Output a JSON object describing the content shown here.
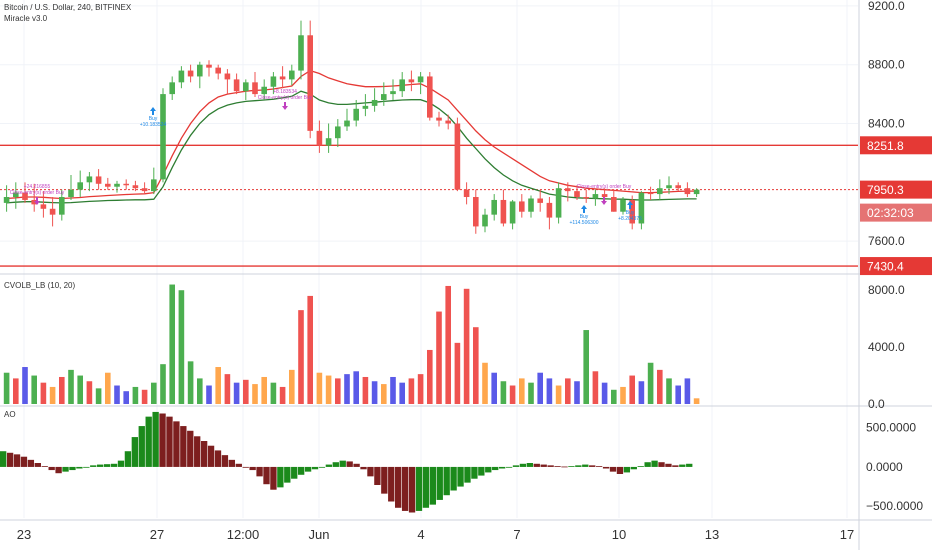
{
  "header": {
    "symbol_title": "Bitcoin / U.S. Dollar, 240, BITFINEX",
    "indicator_name": "Miracle v3.0",
    "volume_panel_label": "CVOLB_LB (10, 20)",
    "ao_panel_label": "AO"
  },
  "price_scale": {
    "ticks": [
      "9200.0",
      "8800.0",
      "8400.0",
      "7600.0"
    ],
    "last_price": "7950.3",
    "countdown": "02:32:03",
    "upper_line_label": "8251.8",
    "lower_line_label": "7430.4"
  },
  "volume_scale": {
    "ticks": [
      "8000.0",
      "4000.0",
      "0.0"
    ]
  },
  "ao_scale": {
    "ticks": [
      "500.0000",
      "0.0000",
      "−500.0000"
    ]
  },
  "time_axis": {
    "ticks": [
      "23",
      "27",
      "12:00",
      "Jun",
      "4",
      "7",
      "10",
      "13",
      "17"
    ]
  },
  "signals": [
    {
      "kind": "buy",
      "label": "Buy",
      "sub": "+10.183534"
    },
    {
      "kind": "close",
      "label": "+8.183534",
      "sub": "Close-entry(s) order Buy"
    },
    {
      "kind": "close",
      "label": "+24.216855",
      "sub": "Close-entry(s) order Buy"
    },
    {
      "kind": "buy",
      "label": "Buy",
      "sub": "+114.506300"
    },
    {
      "kind": "close",
      "label": "Close-entry(s) order Buy",
      "sub": ""
    },
    {
      "kind": "buy",
      "label": "Buy",
      "sub": "+8.204375"
    }
  ],
  "colors": {
    "up": "#4caf50",
    "down": "#ef5350",
    "upper_ma": "#e53935",
    "lower_ma": "#2e7d32",
    "level_line": "#e53935",
    "vol_green": "#4caf50",
    "vol_red": "#ef5350",
    "vol_orange": "#ffa74d",
    "vol_blue": "#5a5ae8",
    "ao_green": "#1b8a1b",
    "ao_red": "#7d1f1f",
    "signal_buy": "#1e88e5",
    "signal_close": "#c040c0"
  },
  "chart_data": [
    {
      "type": "candlestick",
      "title": "Bitcoin / U.S. Dollar, 240, BITFINEX",
      "ylim": [
        7390,
        9240
      ],
      "horizontal_levels": [
        8251.8,
        7430.4
      ],
      "last_price": 7950.3,
      "series": [
        {
          "name": "Candles",
          "open": [
            7860,
            7900,
            7930,
            7880,
            7850,
            7820,
            7780,
            7900,
            7950,
            8000,
            8040,
            7990,
            7970,
            7990,
            7980,
            7960,
            7940,
            8020,
            8600,
            8680,
            8760,
            8720,
            8800,
            8780,
            8740,
            8700,
            8620,
            8680,
            8600,
            8650,
            8720,
            8700,
            8760,
            9000,
            8350,
            8250,
            8300,
            8380,
            8420,
            8500,
            8520,
            8560,
            8600,
            8620,
            8700,
            8680,
            8720,
            8440,
            8420,
            8400,
            7950,
            7900,
            7700,
            7780,
            7880,
            7720,
            7870,
            7800,
            7890,
            7860,
            7760,
            7960,
            7940,
            7900,
            7890,
            7920,
            7900,
            7800,
            7880,
            7720,
            7930,
            7920,
            7960,
            7980,
            7960,
            7920
          ],
          "high": [
            7980,
            8000,
            8000,
            7990,
            7940,
            7900,
            7950,
            8050,
            8080,
            8070,
            8090,
            8030,
            8010,
            8020,
            8010,
            8000,
            8100,
            8640,
            8720,
            8790,
            8800,
            8820,
            8830,
            8800,
            8770,
            8740,
            8700,
            8750,
            8700,
            8750,
            8790,
            8800,
            9100,
            9100,
            8420,
            8400,
            8430,
            8500,
            8560,
            8600,
            8640,
            8680,
            8700,
            8750,
            8760,
            8750,
            8750,
            8480,
            8460,
            8440,
            8000,
            7950,
            7820,
            7920,
            7950,
            7880,
            7920,
            7910,
            7950,
            7900,
            8000,
            8000,
            7980,
            7950,
            7950,
            7960,
            7950,
            7900,
            7910,
            7940,
            7970,
            8020,
            8040,
            8000,
            8000,
            7960
          ],
          "low": [
            7800,
            7820,
            7860,
            7800,
            7760,
            7700,
            7740,
            7880,
            7900,
            7940,
            7950,
            7950,
            7930,
            7950,
            7940,
            7920,
            7920,
            8000,
            8560,
            8640,
            8680,
            8640,
            8720,
            8700,
            8600,
            8600,
            8560,
            8580,
            8560,
            8600,
            8640,
            8660,
            8700,
            8300,
            8200,
            8200,
            8240,
            8350,
            8380,
            8450,
            8480,
            8520,
            8560,
            8580,
            8620,
            8600,
            8420,
            8380,
            8360,
            7940,
            7850,
            7650,
            7660,
            7740,
            7700,
            7680,
            7760,
            7760,
            7800,
            7680,
            7720,
            7870,
            7880,
            7860,
            7840,
            7860,
            7800,
            7780,
            7680,
            7680,
            7880,
            7880,
            7920,
            7940,
            7900,
            7900
          ],
          "close": [
            7900,
            7930,
            7880,
            7850,
            7820,
            7780,
            7900,
            7950,
            8000,
            8040,
            7990,
            7970,
            7990,
            7980,
            7960,
            7940,
            8020,
            8600,
            8680,
            8760,
            8720,
            8800,
            8780,
            8740,
            8700,
            8620,
            8680,
            8600,
            8650,
            8720,
            8700,
            8760,
            9000,
            8350,
            8250,
            8300,
            8380,
            8420,
            8500,
            8520,
            8560,
            8600,
            8620,
            8700,
            8680,
            8720,
            8440,
            8420,
            8400,
            7950,
            7900,
            7700,
            7780,
            7880,
            7720,
            7870,
            7800,
            7890,
            7860,
            7760,
            7960,
            7940,
            7900,
            7890,
            7920,
            7900,
            7800,
            7880,
            7720,
            7930,
            7920,
            7960,
            7980,
            7960,
            7920,
            7950
          ]
        },
        {
          "name": "Upper MA",
          "values": [
            7890,
            7895,
            7900,
            7900,
            7898,
            7893,
            7890,
            7893,
            7897,
            7903,
            7906,
            7910,
            7914,
            7917,
            7920,
            7922,
            7930,
            8050,
            8180,
            8300,
            8400,
            8480,
            8540,
            8580,
            8600,
            8610,
            8620,
            8625,
            8628,
            8635,
            8645,
            8655,
            8720,
            8760,
            8740,
            8710,
            8690,
            8670,
            8660,
            8650,
            8650,
            8652,
            8655,
            8660,
            8665,
            8670,
            8640,
            8600,
            8560,
            8490,
            8420,
            8350,
            8290,
            8240,
            8200,
            8160,
            8120,
            8080,
            8040,
            8010,
            7995,
            7980,
            7970,
            7960,
            7955,
            7950,
            7945,
            7940,
            7935,
            7930,
            7930,
            7932,
            7935,
            7938,
            7940,
            7940
          ]
        },
        {
          "name": "Lower MA",
          "values": [
            7860,
            7865,
            7868,
            7868,
            7865,
            7862,
            7860,
            7862,
            7866,
            7870,
            7873,
            7876,
            7878,
            7880,
            7881,
            7881,
            7885,
            7970,
            8100,
            8220,
            8320,
            8400,
            8460,
            8500,
            8525,
            8540,
            8550,
            8555,
            8560,
            8565,
            8575,
            8585,
            8620,
            8600,
            8560,
            8540,
            8530,
            8530,
            8535,
            8540,
            8545,
            8550,
            8555,
            8560,
            8562,
            8562,
            8540,
            8500,
            8450,
            8380,
            8300,
            8230,
            8160,
            8100,
            8050,
            8010,
            7980,
            7960,
            7940,
            7920,
            7910,
            7900,
            7895,
            7892,
            7890,
            7888,
            7886,
            7885,
            7882,
            7880,
            7880,
            7882,
            7884,
            7886,
            7887,
            7887
          ]
        }
      ]
    },
    {
      "type": "bar",
      "title": "CVOLB_LB (10, 20)",
      "ylim": [
        0,
        9000
      ],
      "series": [
        {
          "name": "CVOLB_LB",
          "values": [
            2200,
            1800,
            2600,
            2000,
            1500,
            1200,
            1900,
            2400,
            2000,
            1600,
            1100,
            2200,
            1300,
            900,
            1200,
            1000,
            1500,
            2800,
            8400,
            8000,
            3000,
            1800,
            1300,
            2600,
            2100,
            1500,
            1700,
            1400,
            1900,
            1500,
            1200,
            2400,
            6600,
            7600,
            2200,
            2000,
            1800,
            2100,
            2300,
            1900,
            1600,
            1400,
            1900,
            1500,
            1800,
            2100,
            3800,
            6500,
            8300,
            4300,
            8100,
            5400,
            2900,
            2200,
            1600,
            1300,
            1800,
            1500,
            2200,
            1800,
            1300,
            1800,
            1600,
            5200,
            2300,
            1500,
            1000,
            1200,
            2000,
            1600,
            2900,
            2400,
            1800,
            1300,
            1800,
            400
          ],
          "colors": [
            "g",
            "r",
            "b",
            "g",
            "r",
            "o",
            "r",
            "g",
            "g",
            "r",
            "g",
            "o",
            "b",
            "b",
            "g",
            "r",
            "g",
            "g",
            "g",
            "g",
            "g",
            "g",
            "b",
            "o",
            "r",
            "b",
            "r",
            "o",
            "o",
            "g",
            "r",
            "o",
            "r",
            "r",
            "o",
            "o",
            "r",
            "b",
            "b",
            "r",
            "b",
            "o",
            "b",
            "b",
            "r",
            "r",
            "r",
            "r",
            "r",
            "r",
            "r",
            "r",
            "o",
            "b",
            "g",
            "r",
            "o",
            "g",
            "b",
            "b",
            "o",
            "r",
            "b",
            "g",
            "r",
            "b",
            "g",
            "o",
            "r",
            "b",
            "g",
            "r",
            "g",
            "b",
            "b",
            "o"
          ]
        }
      ]
    },
    {
      "type": "bar",
      "title": "AO",
      "ylim": [
        -650,
        750
      ],
      "series": [
        {
          "name": "AO",
          "values": [
            200,
            180,
            160,
            130,
            90,
            50,
            10,
            -40,
            -80,
            -60,
            -40,
            -20,
            0,
            20,
            30,
            35,
            40,
            80,
            200,
            380,
            520,
            640,
            700,
            680,
            640,
            580,
            520,
            460,
            390,
            330,
            270,
            210,
            150,
            90,
            40,
            0,
            -40,
            -120,
            -220,
            -290,
            -260,
            -200,
            -150,
            -100,
            -60,
            -30,
            0,
            30,
            60,
            80,
            70,
            40,
            -30,
            -120,
            -230,
            -340,
            -440,
            -520,
            -560,
            -580,
            -560,
            -520,
            -480,
            -420,
            -360,
            -300,
            -250,
            -200,
            -150,
            -110,
            -70,
            -40,
            -20,
            0,
            20,
            40,
            50,
            40,
            30,
            20,
            10,
            5,
            10,
            20,
            30,
            20,
            10,
            -20,
            -60,
            -90,
            -70,
            -30,
            10,
            60,
            80,
            60,
            40,
            20,
            30,
            40
          ]
        }
      ]
    }
  ]
}
